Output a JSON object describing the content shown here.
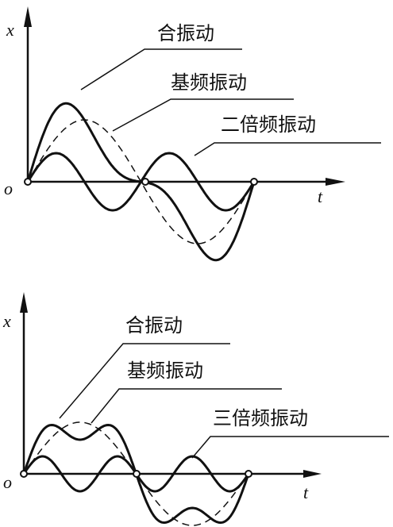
{
  "panels": [
    {
      "y_axis_label": "x",
      "origin_label": "o",
      "x_axis_label": "t",
      "labels": [
        "合振动",
        "基频振动",
        "二倍频振动"
      ]
    },
    {
      "y_axis_label": "x",
      "origin_label": "o",
      "x_axis_label": "t",
      "labels": [
        "合振动",
        "基频振动",
        "三倍频振动"
      ]
    }
  ]
}
